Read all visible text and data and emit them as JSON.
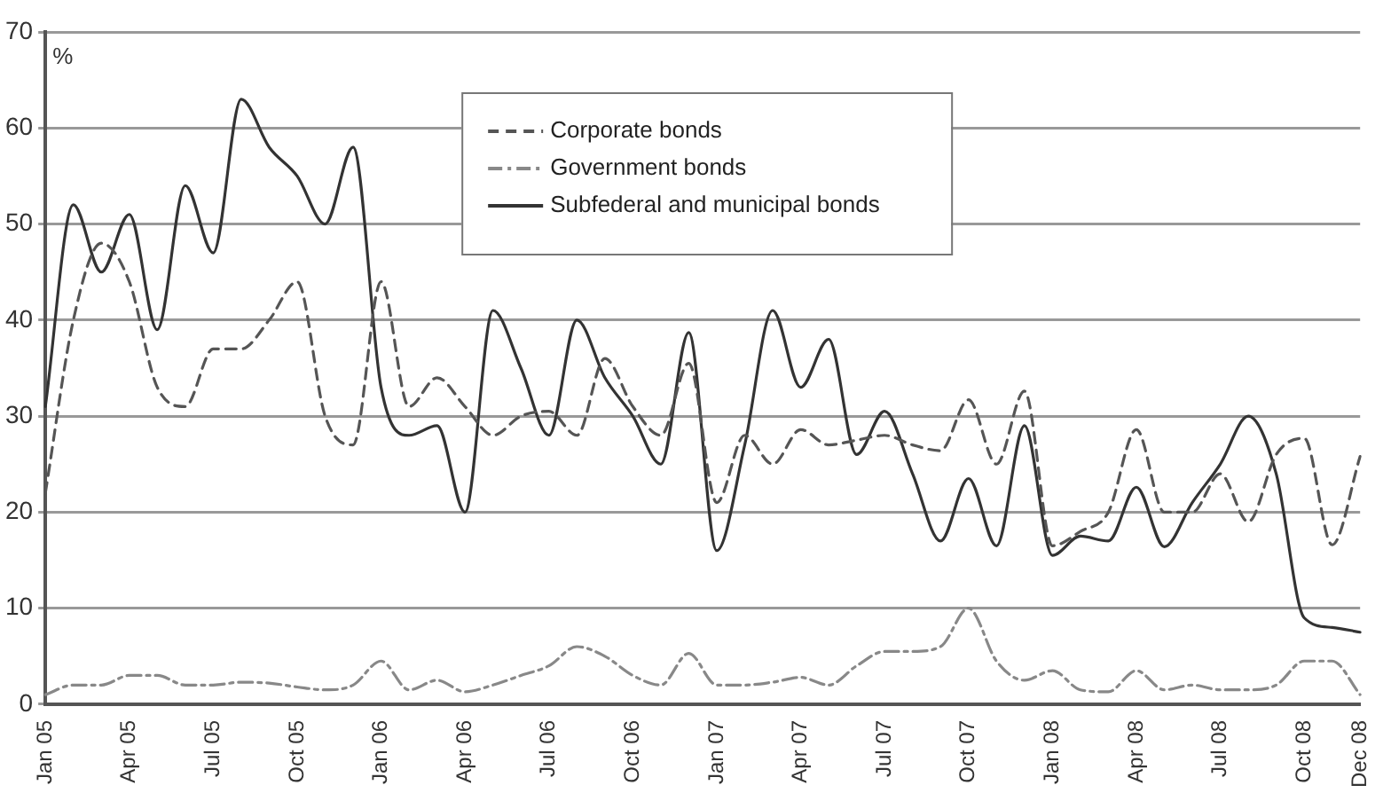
{
  "chart_data": {
    "type": "line",
    "ylabel": "%",
    "categories": [
      "Jan 05",
      null,
      null,
      "Apr 05",
      null,
      null,
      "Jul 05",
      null,
      null,
      "Oct 05",
      null,
      null,
      "Jan 06",
      null,
      null,
      "Apr 06",
      null,
      null,
      "Jul 06",
      null,
      null,
      "Oct 06",
      null,
      null,
      "Jan 07",
      null,
      null,
      "Apr 07",
      null,
      null,
      "Jul 07",
      null,
      null,
      "Oct 07",
      null,
      null,
      "Jan 08",
      null,
      null,
      "Apr 08",
      null,
      null,
      "Jul 08",
      null,
      null,
      "Oct 08",
      null,
      "Dec 08"
    ],
    "series": [
      {
        "name": "Corporate bonds",
        "color": "#555555",
        "line_style": "dashed",
        "values": [
          22,
          40,
          48,
          44,
          33,
          31,
          37,
          37,
          40,
          44,
          30,
          27,
          44,
          31,
          34,
          31,
          28,
          30,
          30.5,
          28,
          36,
          31,
          28,
          35.5,
          21,
          28,
          25,
          28.6,
          27,
          27.5,
          28,
          27,
          26.4,
          31.7,
          25,
          32.6,
          16.5,
          18,
          20,
          28.6,
          20,
          20,
          24,
          19,
          26,
          27.7,
          16.6,
          25.8
        ]
      },
      {
        "name": "Government bonds",
        "color": "#888888",
        "line_style": "dashdot",
        "values": [
          1,
          2,
          2,
          3,
          3,
          2,
          2,
          2.3,
          2.2,
          1.8,
          1.5,
          2,
          4.5,
          1.5,
          2.5,
          1.3,
          2,
          3,
          4,
          6,
          5,
          3,
          2,
          5.3,
          2,
          2,
          2.3,
          2.8,
          2,
          4,
          5.5,
          5.5,
          6,
          10,
          4.5,
          2.5,
          3.5,
          1.5,
          1.3,
          3.5,
          1.5,
          2,
          1.5,
          1.5,
          2,
          4.5,
          4.5,
          1
        ]
      },
      {
        "name": "Subfederal and municipal bonds",
        "color": "#333333",
        "line_style": "solid",
        "values": [
          31,
          52,
          45,
          51,
          39,
          54,
          47,
          63,
          58,
          55,
          50,
          58,
          33,
          28,
          29,
          20,
          41,
          35,
          28,
          40,
          34,
          30,
          25,
          38.7,
          16,
          27,
          41,
          33,
          38,
          26,
          30.5,
          24,
          17,
          23.5,
          16.5,
          29,
          15.5,
          17.5,
          17,
          22.6,
          16.4,
          21,
          25,
          30,
          24,
          9,
          8,
          7.5
        ]
      }
    ],
    "ylim": [
      0,
      70
    ],
    "yticks": [
      0,
      10,
      20,
      30,
      40,
      50,
      60,
      70
    ],
    "grid": "y",
    "legend": "top",
    "marker": "none"
  }
}
